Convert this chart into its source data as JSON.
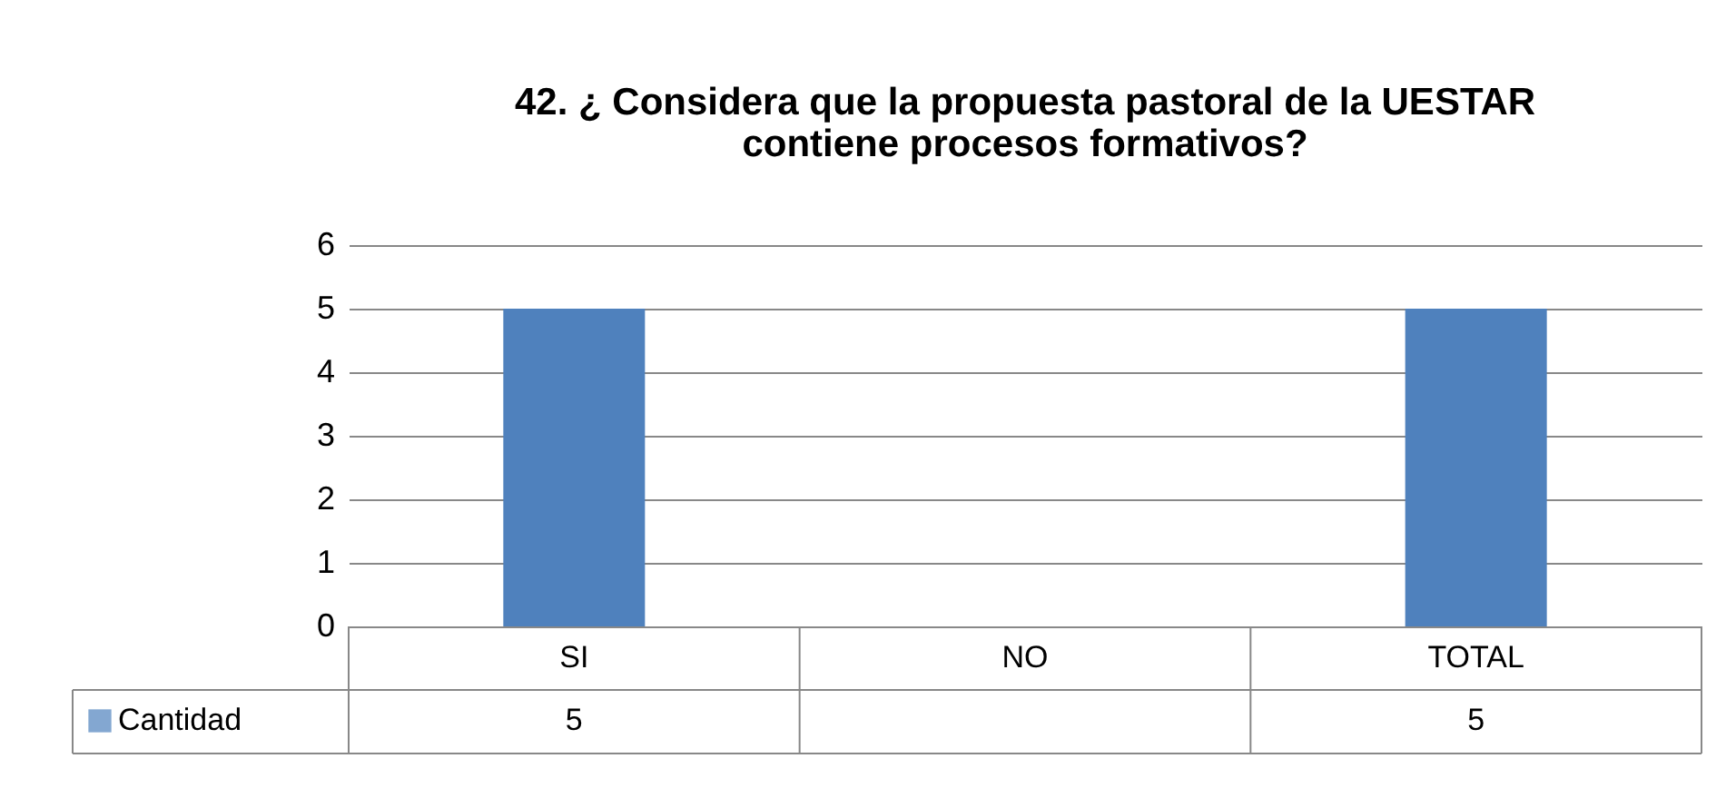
{
  "chart_data": {
    "type": "bar",
    "title": [
      "42. ¿ Considera que  la propuesta pastoral de la UESTAR",
      "contiene procesos formativos?"
    ],
    "categories": [
      "SI",
      "NO",
      "TOTAL"
    ],
    "series": [
      {
        "name": "Cantidad",
        "color": "#4f81bd",
        "values": [
          5,
          null,
          5
        ]
      }
    ],
    "ylim": [
      0,
      6
    ],
    "yticks": [
      0,
      1,
      2,
      3,
      4,
      5,
      6
    ],
    "grid": "y",
    "legend": "bottom",
    "data_labels": true
  }
}
